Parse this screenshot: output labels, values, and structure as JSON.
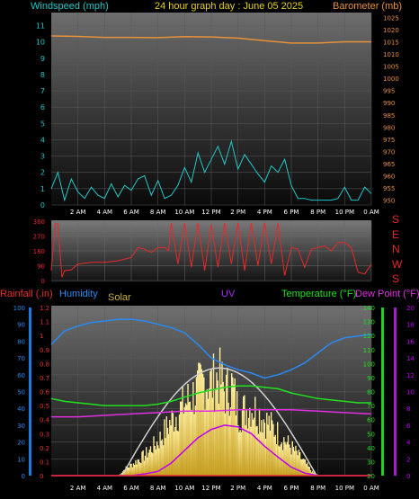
{
  "header": {
    "windspeed_label": "Windspeed (mph)",
    "title": "24 hour graph day : June 05 2025",
    "barometer_label": "Barometer (mb)"
  },
  "lower_labels": {
    "rainfall": "Rainfall (.in)",
    "humidity": "Humidity",
    "solar": "Solar",
    "uv": "UV",
    "temperature": "Temperature (°F)",
    "dewpoint": "Dew Point (°F)"
  },
  "direction_letters": [
    "S",
    "E",
    "N",
    "W",
    "S"
  ],
  "colors": {
    "wind": "#1ec8c8",
    "barometer": "#e8903a",
    "direction": "#e8292a",
    "humidity": "#2a8af0",
    "solar": "#f0e090",
    "uv": "#c000f0",
    "temperature": "#20e020",
    "dewpoint": "#e030e0",
    "rain": "#e83030",
    "clear_sky": "#d0d0d0"
  },
  "chart_data": [
    {
      "type": "line",
      "name": "windspeed_barometer",
      "x_ticks": [
        "2 AM",
        "4 AM",
        "6 AM",
        "8 AM",
        "10 AM",
        "12 PM",
        "2 PM",
        "4 PM",
        "6 PM",
        "8 PM",
        "10 PM",
        "0 AM"
      ],
      "y_left_ticks": [
        "0",
        "1",
        "2",
        "3",
        "4",
        "5",
        "6",
        "7",
        "8",
        "9",
        "10",
        "11"
      ],
      "y_left_range": [
        0,
        11.8
      ],
      "y_right_ticks": [
        "950",
        "955",
        "960",
        "965",
        "970",
        "975",
        "980",
        "985",
        "990",
        "995",
        "1000",
        "1005",
        "1010",
        "1015",
        "1020",
        "1025"
      ],
      "y_right_range": [
        948,
        1027
      ],
      "series": [
        {
          "name": "Windspeed (mph)",
          "x": [
            0,
            0.5,
            1,
            1.5,
            2,
            2.5,
            3,
            3.5,
            4,
            4.5,
            5,
            5.5,
            6,
            6.5,
            7,
            7.5,
            8,
            8.5,
            9,
            9.5,
            10,
            10.5,
            11,
            11.5,
            12,
            12.5,
            13,
            13.5,
            14,
            14.5,
            15,
            15.5,
            16,
            16.5,
            17,
            17.5,
            18,
            18.5,
            19,
            19.5,
            20,
            20.5,
            21,
            21.5,
            22,
            22.5,
            23,
            23.5,
            24
          ],
          "values": [
            1,
            2,
            0.3,
            1.6,
            0.8,
            0.4,
            1.1,
            0.6,
            0.4,
            1.3,
            0.5,
            1.2,
            0.9,
            1.6,
            1.8,
            0.6,
            1.5,
            0.4,
            0.6,
            1.2,
            2.3,
            1.4,
            3.2,
            2.0,
            2.8,
            3.6,
            2.5,
            3.9,
            2.2,
            3.1,
            2.5,
            1.9,
            1.4,
            2.4,
            2.0,
            2.8,
            1.2,
            0.4,
            0.4,
            0.3,
            0.3,
            0.3,
            0.3,
            0.4,
            1.1,
            0.3,
            0.3,
            1.1,
            0.7
          ]
        },
        {
          "name": "Barometer (mb)",
          "x": [
            0,
            2,
            4,
            6,
            8,
            10,
            12,
            14,
            16,
            18,
            20,
            22,
            24
          ],
          "values": [
            1017.4,
            1017.2,
            1016.8,
            1016.8,
            1016.7,
            1017.1,
            1017.0,
            1016.5,
            1015.5,
            1014.5,
            1014.5,
            1015.0,
            1015.0
          ]
        }
      ]
    },
    {
      "type": "line",
      "name": "wind_direction",
      "x_ticks": [],
      "y_left_ticks": [
        "0",
        "90",
        "180",
        "270",
        "360"
      ],
      "y_left_range": [
        0,
        360
      ],
      "series": [
        {
          "name": "Wind direction",
          "x": [
            0,
            0.3,
            0.5,
            0.8,
            1,
            1.5,
            2,
            3,
            4,
            5,
            6,
            6.5,
            7,
            7.5,
            8,
            8.5,
            8.8,
            9,
            9.5,
            10,
            10.5,
            11,
            11.5,
            12,
            12.5,
            13,
            13.5,
            14,
            14.5,
            15,
            15.5,
            16,
            16.5,
            17,
            17.5,
            18,
            18.5,
            19,
            19.5,
            20,
            20.5,
            21,
            21.5,
            22,
            22.5,
            23,
            23.5,
            24
          ],
          "values": [
            60,
            345,
            345,
            20,
            60,
            65,
            100,
            110,
            110,
            120,
            140,
            200,
            190,
            170,
            200,
            200,
            180,
            350,
            100,
            350,
            80,
            350,
            60,
            340,
            80,
            350,
            100,
            350,
            60,
            350,
            90,
            350,
            100,
            350,
            30,
            200,
            190,
            80,
            190,
            200,
            210,
            180,
            230,
            230,
            200,
            50,
            40,
            100
          ]
        }
      ]
    },
    {
      "type": "line",
      "name": "rain_humidity_solar_uv_temperature",
      "x_ticks": [
        "2 AM",
        "4 AM",
        "6 AM",
        "8 AM",
        "10 AM",
        "12 PM",
        "2 PM",
        "4 PM",
        "6 PM",
        "8 PM",
        "10 PM",
        "0 AM"
      ],
      "y_rain_ticks": [
        "0",
        "0.1",
        "0.2",
        "0.3",
        "0.4",
        "0.5",
        "0.6",
        "0.7",
        "0.8",
        "0.9",
        "1",
        "1.1",
        "1.2"
      ],
      "y_humidity_ticks": [
        "0",
        "10",
        "20",
        "30",
        "40",
        "50",
        "60",
        "70",
        "80",
        "90",
        "100"
      ],
      "y_temp_ticks": [
        "20",
        "30",
        "40",
        "50",
        "60",
        "70",
        "80",
        "90",
        "100",
        "110",
        "120",
        "130",
        "140"
      ],
      "y_uv_ticks": [
        "0",
        "2",
        "4",
        "6",
        "8",
        "10",
        "12",
        "14",
        "16",
        "18",
        "20"
      ],
      "series": [
        {
          "name": "Humidity",
          "x": [
            0,
            1,
            2,
            3,
            4,
            5,
            6,
            7,
            8,
            9,
            10,
            11,
            12,
            13,
            14,
            15,
            16,
            17,
            18,
            19,
            20,
            21,
            22,
            23,
            24
          ],
          "values": [
            78,
            86,
            89,
            91,
            92,
            93,
            93,
            92,
            90,
            88,
            85,
            78,
            70,
            66,
            63,
            61,
            58,
            60,
            63,
            67,
            73,
            79,
            82,
            83,
            84
          ]
        },
        {
          "name": "Temperature (°F)",
          "x": [
            0,
            1,
            2,
            3,
            4,
            5,
            6,
            7,
            8,
            9,
            10,
            11,
            12,
            13,
            14,
            15,
            16,
            17,
            18,
            19,
            20,
            21,
            22,
            23,
            24
          ],
          "values": [
            75,
            73,
            72,
            71,
            70,
            70,
            70,
            70,
            71,
            73,
            76,
            79,
            81,
            83,
            84,
            84,
            83,
            82,
            79,
            77,
            75,
            74,
            73,
            72,
            72
          ]
        },
        {
          "name": "Dew Point (°F)",
          "x": [
            0,
            2,
            4,
            6,
            8,
            10,
            12,
            14,
            16,
            18,
            20,
            22,
            24
          ],
          "values": [
            62,
            62,
            63,
            64,
            65,
            66,
            66,
            67,
            67,
            67,
            66,
            65,
            64
          ]
        },
        {
          "name": "Solar",
          "x": [
            0,
            5,
            5.5,
            6,
            7,
            8,
            9,
            10,
            11,
            11.5,
            12,
            12.5,
            13,
            13.5,
            14,
            15,
            16,
            17,
            18,
            19,
            19.5,
            20,
            24
          ],
          "values": [
            0,
            0,
            50,
            80,
            150,
            250,
            400,
            520,
            620,
            700,
            660,
            720,
            600,
            650,
            450,
            500,
            400,
            300,
            200,
            90,
            30,
            0,
            0
          ]
        },
        {
          "name": "UV",
          "x": [
            0,
            6,
            7,
            8,
            9,
            10,
            11,
            12,
            13,
            14,
            15,
            16,
            17,
            18,
            19,
            20,
            24
          ],
          "values": [
            0,
            0,
            0.2,
            0.5,
            1.5,
            3.0,
            4.5,
            5.5,
            6.0,
            5.8,
            5.0,
            3.5,
            2.2,
            1.0,
            0.3,
            0,
            0
          ]
        },
        {
          "name": "Rainfall (.in)",
          "x": [
            0,
            24
          ],
          "values": [
            0,
            0
          ]
        }
      ]
    }
  ]
}
